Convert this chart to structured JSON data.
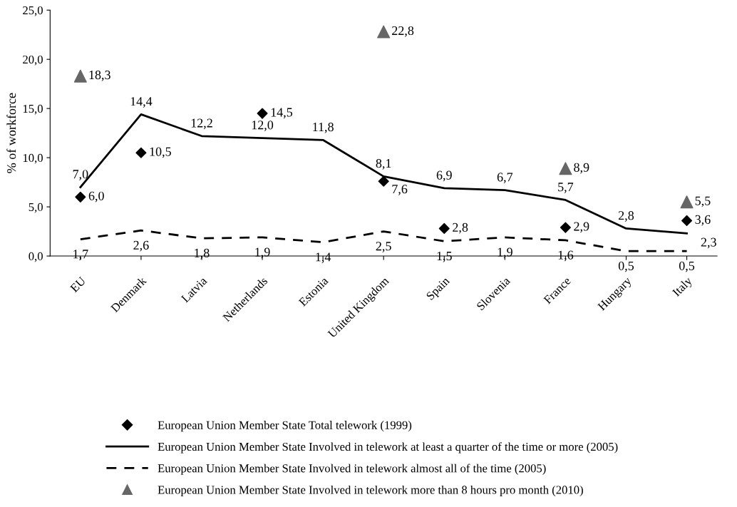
{
  "chart_data": {
    "type": "line",
    "ylabel": "% of workforce",
    "categories": [
      "EU",
      "Denmark",
      "Latvia",
      "Netherlands",
      "Estonia",
      "United Kingdom",
      "Spain",
      "Slovenia",
      "France",
      "Hungary",
      "Italy"
    ],
    "series": [
      {
        "name": "European Union Member State Total telework (1999)",
        "type": "scatter",
        "marker": "diamond",
        "color": "#000000",
        "values": [
          6.0,
          10.5,
          null,
          14.5,
          null,
          7.6,
          2.8,
          null,
          2.9,
          null,
          3.6
        ],
        "value_labels": [
          "6,0",
          "10,5",
          null,
          "14,5",
          null,
          "7,6",
          "2,8",
          null,
          "2,9",
          null,
          "3,6"
        ]
      },
      {
        "name": "European Union Member State Involved in telework at least a quarter of the time or more (2005)",
        "line_style": "solid",
        "color": "#000000",
        "values": [
          7.0,
          14.4,
          12.2,
          12.0,
          11.8,
          8.1,
          6.9,
          6.7,
          5.7,
          2.8,
          2.3
        ],
        "value_labels": [
          "7,0",
          "14,4",
          "12,2",
          "12,0",
          "11,8",
          "8,1",
          "6,9",
          "6,7",
          "5,7",
          "2,8",
          "2,3"
        ]
      },
      {
        "name": "European Union Member State Involved in telework almost all of the time (2005)",
        "line_style": "dashed",
        "color": "#000000",
        "values": [
          1.7,
          2.6,
          1.8,
          1.9,
          1.4,
          2.5,
          1.5,
          1.9,
          1.6,
          0.5,
          0.5
        ],
        "value_labels": [
          "1,7",
          "2,6",
          "1,8",
          "1,9",
          "1,4",
          "2,5",
          "1,5",
          "1,9",
          "1,6",
          "0,5",
          "0,5"
        ]
      },
      {
        "name": "European Union Member State Involved in telework more than 8 hours pro month (2010)",
        "type": "scatter",
        "marker": "triangle",
        "color": "#666666",
        "values": [
          18.3,
          null,
          null,
          null,
          null,
          22.8,
          null,
          null,
          8.9,
          null,
          5.5
        ],
        "value_labels": [
          "18,3",
          null,
          null,
          null,
          null,
          "22,8",
          null,
          null,
          "8,9",
          null,
          "5,5"
        ]
      }
    ],
    "ylim": [
      0,
      25
    ],
    "yticks": [
      {
        "value": 0,
        "label": "0,0"
      },
      {
        "value": 5,
        "label": "5,0"
      },
      {
        "value": 10,
        "label": "10,0"
      },
      {
        "value": 15,
        "label": "15,0"
      },
      {
        "value": 20,
        "label": "20,0"
      },
      {
        "value": 25,
        "label": "25,0"
      }
    ],
    "grid": false,
    "legend": "bottom"
  }
}
